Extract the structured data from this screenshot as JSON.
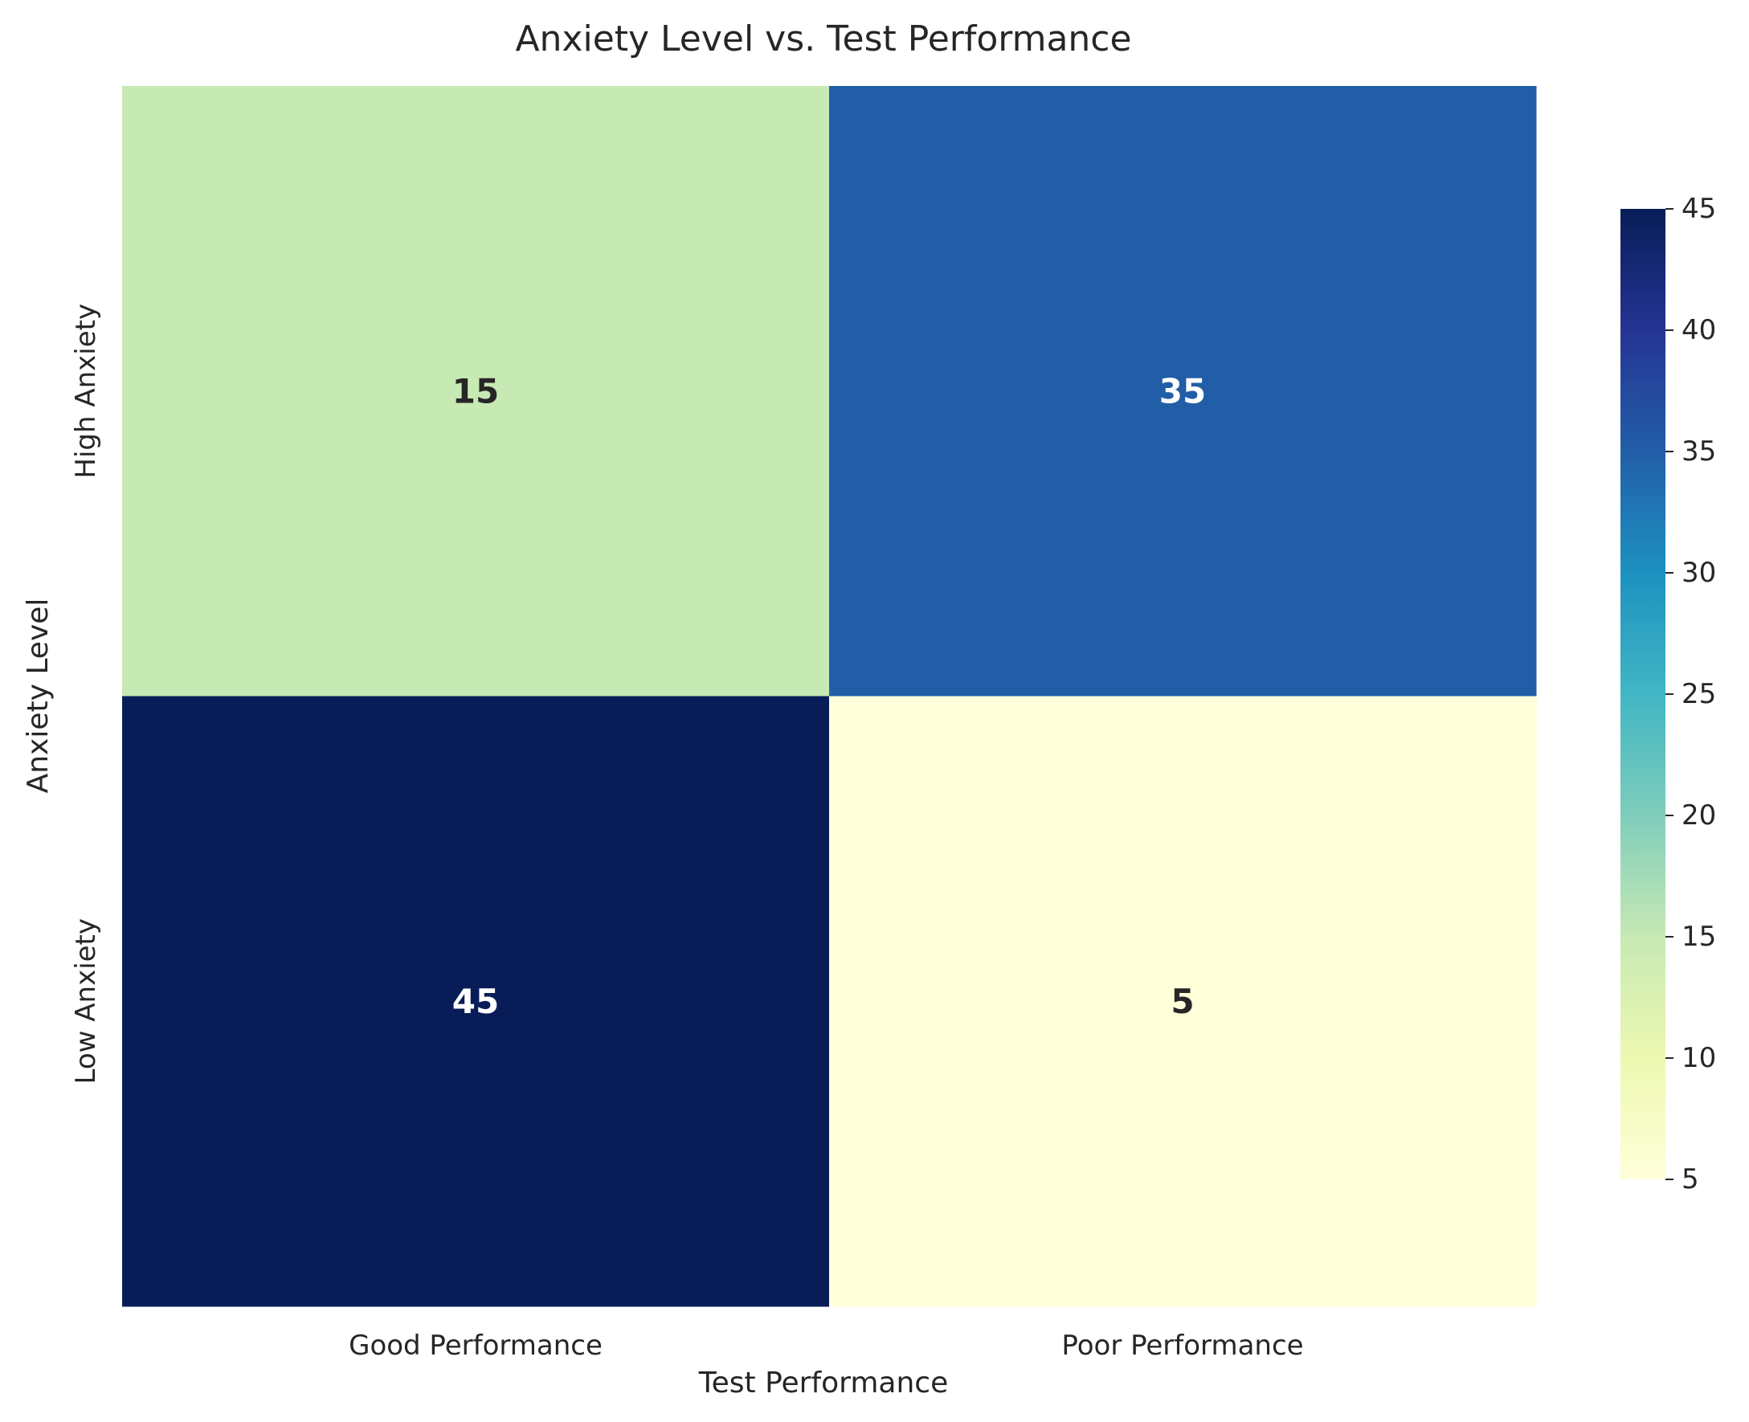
{
  "chart_data": {
    "type": "heatmap",
    "title": "Anxiety Level vs. Test Performance",
    "xlabel": "Test Performance",
    "ylabel": "Anxiety Level",
    "x_categories": [
      "Good Performance",
      "Poor Performance"
    ],
    "y_categories": [
      "High Anxiety",
      "Low Anxiety"
    ],
    "values": [
      [
        15,
        35
      ],
      [
        45,
        5
      ]
    ],
    "colormap": "YlGnBu",
    "color_stops": [
      "#ffffd9",
      "#edf8b1",
      "#c7e9b4",
      "#7fcdbb",
      "#41b6c4",
      "#1d91c0",
      "#225ea8",
      "#253494",
      "#081d58"
    ],
    "annot_text_dark": "#262626",
    "annot_text_light": "#ffffff",
    "colorbar": {
      "range": [
        5,
        45
      ],
      "ticks": [
        5,
        10,
        15,
        20,
        25,
        30,
        35,
        40,
        45
      ]
    },
    "grid": false,
    "legend": "colorbar-right"
  }
}
